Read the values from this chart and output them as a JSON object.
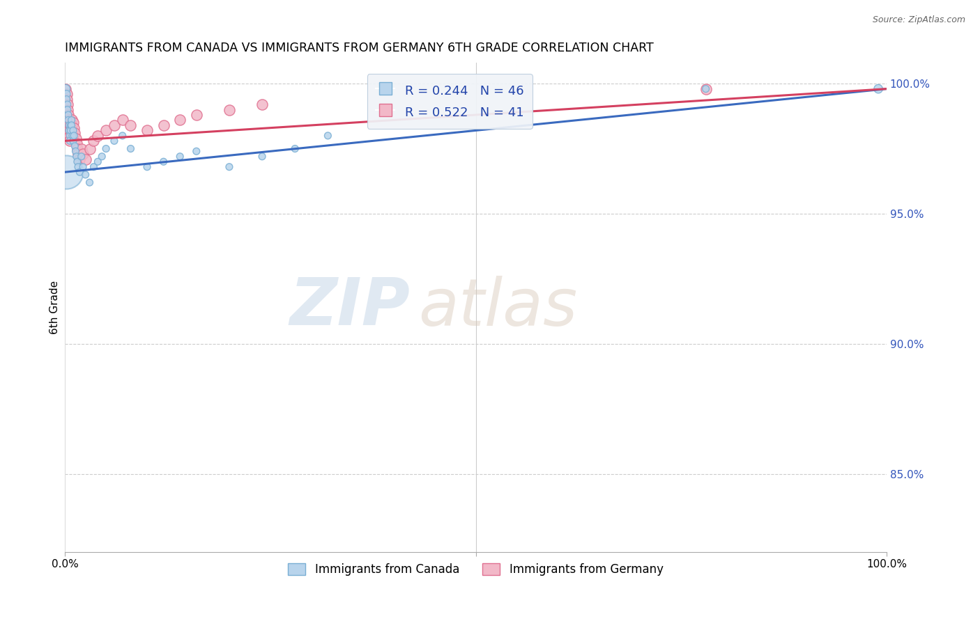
{
  "title": "IMMIGRANTS FROM CANADA VS IMMIGRANTS FROM GERMANY 6TH GRADE CORRELATION CHART",
  "source": "Source: ZipAtlas.com",
  "ylabel": "6th Grade",
  "xlim": [
    0.0,
    1.0
  ],
  "ylim": [
    0.82,
    1.008
  ],
  "yticks": [
    0.85,
    0.9,
    0.95,
    1.0
  ],
  "ytick_labels": [
    "85.0%",
    "90.0%",
    "95.0%",
    "100.0%"
  ],
  "xticks": [
    0.0,
    0.5,
    1.0
  ],
  "xtick_labels": [
    "0.0%",
    "",
    "100.0%"
  ],
  "canada_color": "#b8d4ec",
  "germany_color": "#f2b8c8",
  "canada_edge": "#7aafd4",
  "germany_edge": "#e07090",
  "trend_canada_color": "#3a6abf",
  "trend_germany_color": "#d44060",
  "R_canada": 0.244,
  "N_canada": 46,
  "R_germany": 0.522,
  "N_germany": 41,
  "watermark_zip": "ZIP",
  "watermark_atlas": "atlas",
  "canada_x": [
    0.001,
    0.002,
    0.002,
    0.003,
    0.003,
    0.004,
    0.004,
    0.005,
    0.005,
    0.006,
    0.006,
    0.007,
    0.007,
    0.008,
    0.008,
    0.009,
    0.01,
    0.01,
    0.011,
    0.012,
    0.013,
    0.014,
    0.015,
    0.016,
    0.018,
    0.02,
    0.022,
    0.025,
    0.03,
    0.035,
    0.04,
    0.045,
    0.05,
    0.06,
    0.07,
    0.08,
    0.1,
    0.12,
    0.14,
    0.16,
    0.2,
    0.24,
    0.28,
    0.32,
    0.78,
    0.99
  ],
  "canada_y": [
    0.998,
    0.996,
    0.994,
    0.992,
    0.99,
    0.988,
    0.986,
    0.984,
    0.982,
    0.98,
    0.978,
    0.984,
    0.982,
    0.986,
    0.984,
    0.98,
    0.978,
    0.982,
    0.98,
    0.976,
    0.974,
    0.972,
    0.97,
    0.968,
    0.966,
    0.972,
    0.968,
    0.965,
    0.962,
    0.968,
    0.97,
    0.972,
    0.975,
    0.978,
    0.98,
    0.975,
    0.968,
    0.97,
    0.972,
    0.974,
    0.968,
    0.972,
    0.975,
    0.98,
    0.998,
    0.998
  ],
  "canada_sizes": [
    80,
    60,
    50,
    50,
    50,
    50,
    50,
    50,
    50,
    50,
    50,
    50,
    50,
    50,
    50,
    50,
    50,
    50,
    50,
    50,
    50,
    50,
    50,
    50,
    50,
    50,
    50,
    50,
    50,
    50,
    50,
    50,
    50,
    50,
    50,
    50,
    50,
    50,
    50,
    50,
    50,
    50,
    50,
    50,
    50,
    80
  ],
  "germany_x": [
    0.001,
    0.002,
    0.002,
    0.003,
    0.003,
    0.004,
    0.004,
    0.005,
    0.005,
    0.006,
    0.006,
    0.007,
    0.007,
    0.008,
    0.008,
    0.009,
    0.01,
    0.011,
    0.012,
    0.013,
    0.014,
    0.015,
    0.016,
    0.018,
    0.02,
    0.022,
    0.025,
    0.03,
    0.035,
    0.04,
    0.05,
    0.06,
    0.07,
    0.08,
    0.1,
    0.12,
    0.14,
    0.16,
    0.2,
    0.24,
    0.78
  ],
  "germany_y": [
    0.998,
    0.996,
    0.994,
    0.992,
    0.99,
    0.988,
    0.986,
    0.984,
    0.982,
    0.98,
    0.978,
    0.984,
    0.982,
    0.986,
    0.984,
    0.98,
    0.985,
    0.983,
    0.981,
    0.979,
    0.977,
    0.975,
    0.973,
    0.971,
    0.975,
    0.973,
    0.971,
    0.975,
    0.978,
    0.98,
    0.982,
    0.984,
    0.986,
    0.984,
    0.982,
    0.984,
    0.986,
    0.988,
    0.99,
    0.992,
    0.998
  ],
  "canada_trend_x0": 0.0,
  "canada_trend_x1": 1.0,
  "canada_trend_y0": 0.966,
  "canada_trend_y1": 0.998,
  "germany_trend_x0": 0.0,
  "germany_trend_x1": 1.0,
  "germany_trend_y0": 0.978,
  "germany_trend_y1": 0.998
}
